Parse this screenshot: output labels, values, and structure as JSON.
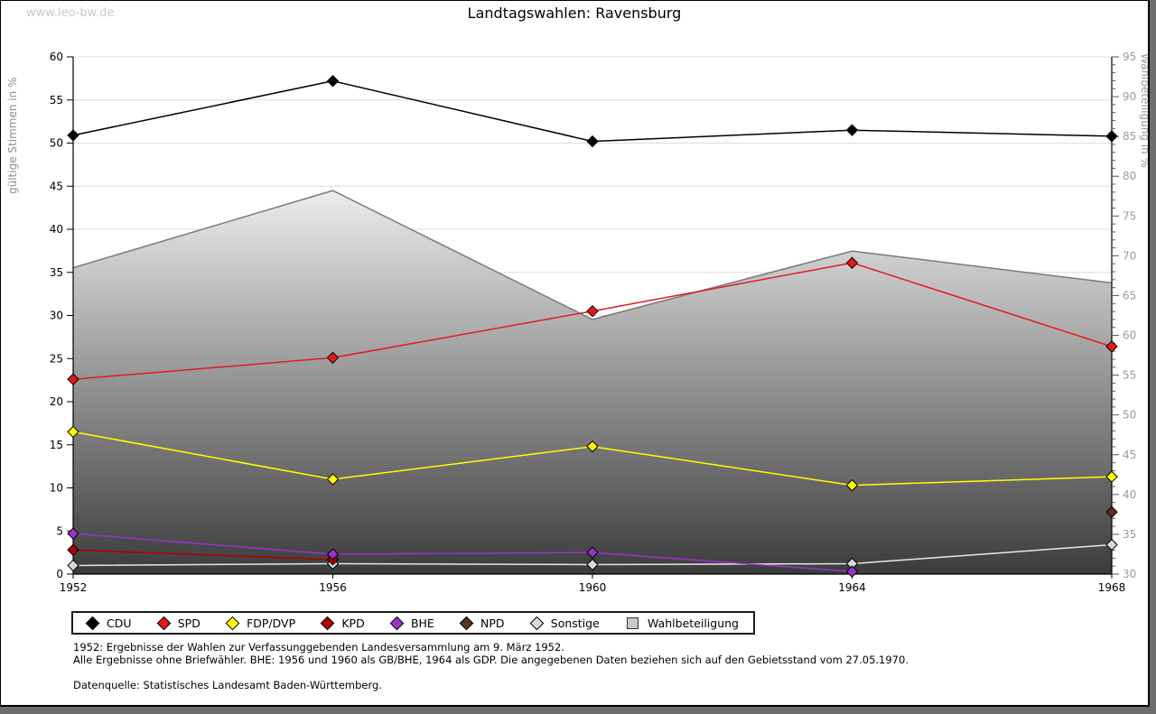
{
  "watermark": "www.leo-bw.de",
  "title": "Landtagswahlen: Ravensburg",
  "chart_data": {
    "type": "line",
    "x": [
      1952,
      1956,
      1960,
      1964,
      1968
    ],
    "left_axis": {
      "label": "gültige Stimmen in %",
      "min": 0,
      "max": 60,
      "tick_step": 5
    },
    "right_axis": {
      "label": "Wahlbeteiligung in %",
      "min": 30,
      "max": 95,
      "tick_step": 5,
      "minor_step": 1
    },
    "grid": "horizontal-major",
    "legend_position": "bottom",
    "series": [
      {
        "name": "CDU",
        "axis": "left",
        "color": "#000000",
        "marker": "diamond",
        "values": [
          50.9,
          57.2,
          50.2,
          51.5,
          50.8
        ]
      },
      {
        "name": "SPD",
        "axis": "left",
        "color": "#e31a1a",
        "marker": "diamond",
        "values": [
          22.6,
          25.1,
          30.5,
          36.1,
          26.4
        ]
      },
      {
        "name": "FDP/DVP",
        "axis": "left",
        "color": "#ffff00",
        "marker": "diamond",
        "values": [
          16.5,
          11.0,
          14.8,
          10.3,
          11.3
        ]
      },
      {
        "name": "KPD",
        "axis": "left",
        "color": "#b00000",
        "marker": "diamond",
        "values": [
          2.8,
          1.7,
          null,
          null,
          null
        ]
      },
      {
        "name": "BHE",
        "axis": "left",
        "color": "#9933cc",
        "marker": "diamond",
        "values": [
          4.7,
          2.3,
          2.5,
          0.3,
          null
        ]
      },
      {
        "name": "NPD",
        "axis": "left",
        "color": "#5a3222",
        "marker": "diamond",
        "values": [
          null,
          null,
          null,
          null,
          7.2
        ]
      },
      {
        "name": "Sonstige",
        "axis": "left",
        "color": "#e8e8e8",
        "marker": "diamond",
        "marker_fill": "#d9d9d9",
        "values": [
          1.0,
          1.2,
          1.1,
          1.2,
          3.4
        ]
      }
    ],
    "area_series": {
      "name": "Wahlbeteiligung",
      "axis": "right",
      "values": [
        68.5,
        78.2,
        62.0,
        70.6,
        66.6
      ],
      "outline_color": "#7a7a7a",
      "fill_top": "#f0f0f0",
      "fill_bottom": "#3c3c3c"
    }
  },
  "legend": {
    "items": [
      {
        "label": "CDU",
        "color": "#000000",
        "shape": "diamond"
      },
      {
        "label": "SPD",
        "color": "#e31a1a",
        "shape": "diamond"
      },
      {
        "label": "FDP/DVP",
        "color": "#ffff00",
        "shape": "diamond"
      },
      {
        "label": "KPD",
        "color": "#b00000",
        "shape": "diamond"
      },
      {
        "label": "BHE",
        "color": "#9933cc",
        "shape": "diamond"
      },
      {
        "label": "NPD",
        "color": "#5a3222",
        "shape": "diamond"
      },
      {
        "label": "Sonstige",
        "color": "#d9d9d9",
        "shape": "diamond"
      },
      {
        "label": "Wahlbeteiligung",
        "color": "#c8c8c8",
        "shape": "square"
      }
    ]
  },
  "footnotes": {
    "line1": "1952: Ergebnisse der Wahlen zur Verfassunggebenden Landesversammlung am 9. März 1952.",
    "line2": "Alle Ergebnisse ohne Briefwähler. BHE: 1956 und 1960 als GB/BHE, 1964 als GDP. Die angegebenen Daten beziehen sich auf den Gebietsstand vom 27.05.1970.",
    "line3": "Datenquelle: Statistisches Landesamt Baden-Württemberg."
  }
}
